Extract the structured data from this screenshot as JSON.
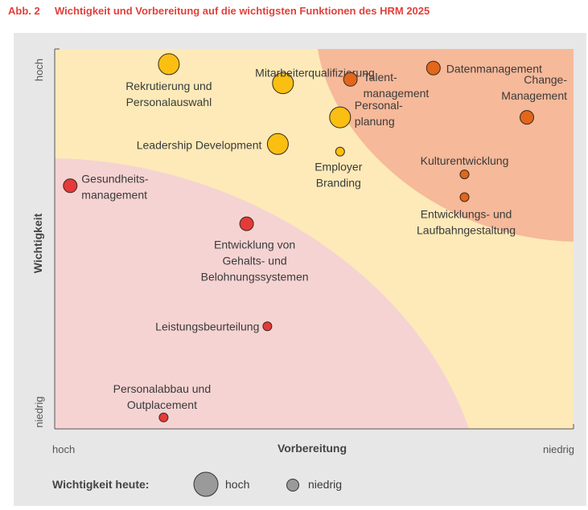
{
  "header": {
    "fig_number": "Abb. 2",
    "title": "Wichtigkeit und Vorbereitung auf die wichtigsten Funktionen des HRM 2025"
  },
  "chart_data": {
    "type": "scatter",
    "title": "Wichtigkeit und Vorbereitung auf die wichtigsten Funktionen des HRM 2025",
    "xlabel": "Vorbereitung",
    "ylabel": "Wichtigkeit",
    "x_ends": [
      "hoch",
      "niedrig"
    ],
    "y_ends": [
      "niedrig",
      "hoch"
    ],
    "xlim": [
      0,
      100
    ],
    "ylim": [
      0,
      100
    ],
    "grid": false,
    "legend_position": "bottom",
    "legend": {
      "label": "Wichtigkeit heute:",
      "items": [
        {
          "label": "hoch",
          "size": "large"
        },
        {
          "label": "niedrig",
          "size": "small"
        }
      ]
    },
    "zones": [
      {
        "name": "red",
        "color": "#f6d3d3"
      },
      {
        "name": "yellow",
        "color": "#fdeab8"
      },
      {
        "name": "orange",
        "color": "#f6b99a"
      }
    ],
    "colors": {
      "red": "#e43a3a",
      "yellow": "#fbbf12",
      "orange": "#e2661b"
    },
    "points": [
      {
        "label": [
          "Rekrutierung und",
          "Personalauswahl"
        ],
        "x": 22,
        "y": 96,
        "size": "large",
        "color": "yellow"
      },
      {
        "label": [
          "Mitarbeiterqualifizierung"
        ],
        "x": 44,
        "y": 91,
        "size": "large",
        "color": "yellow"
      },
      {
        "label": [
          "Talent-",
          "management"
        ],
        "x": 57,
        "y": 92,
        "size": "medium",
        "color": "orange"
      },
      {
        "label": [
          "Datenmanagement"
        ],
        "x": 73,
        "y": 95,
        "size": "medium",
        "color": "orange"
      },
      {
        "label": [
          "Change-",
          "Management"
        ],
        "x": 91,
        "y": 82,
        "size": "medium",
        "color": "orange"
      },
      {
        "label": [
          "Personal-",
          "planung"
        ],
        "x": 55,
        "y": 82,
        "size": "large",
        "color": "yellow"
      },
      {
        "label": [
          "Leadership Development"
        ],
        "x": 43,
        "y": 75,
        "size": "large",
        "color": "yellow"
      },
      {
        "label": [
          "Employer",
          "Branding"
        ],
        "x": 55,
        "y": 73,
        "size": "small",
        "color": "yellow"
      },
      {
        "label": [
          "Kulturentwicklung"
        ],
        "x": 79,
        "y": 67,
        "size": "small",
        "color": "orange"
      },
      {
        "label": [
          "Entwicklungs- und",
          "Laufbahngestaltung"
        ],
        "x": 79,
        "y": 61,
        "size": "small",
        "color": "orange"
      },
      {
        "label": [
          "Gesundheits-",
          "management"
        ],
        "x": 3,
        "y": 64,
        "size": "medium",
        "color": "red"
      },
      {
        "label": [
          "Entwicklung von",
          "Gehalts- und",
          "Belohnungssystemen"
        ],
        "x": 37,
        "y": 54,
        "size": "medium",
        "color": "red"
      },
      {
        "label": [
          "Leistungsbeurteilung"
        ],
        "x": 41,
        "y": 27,
        "size": "small",
        "color": "red"
      },
      {
        "label": [
          "Personalabbau und",
          "Outplacement"
        ],
        "x": 21,
        "y": 3,
        "size": "small",
        "color": "red"
      }
    ]
  }
}
